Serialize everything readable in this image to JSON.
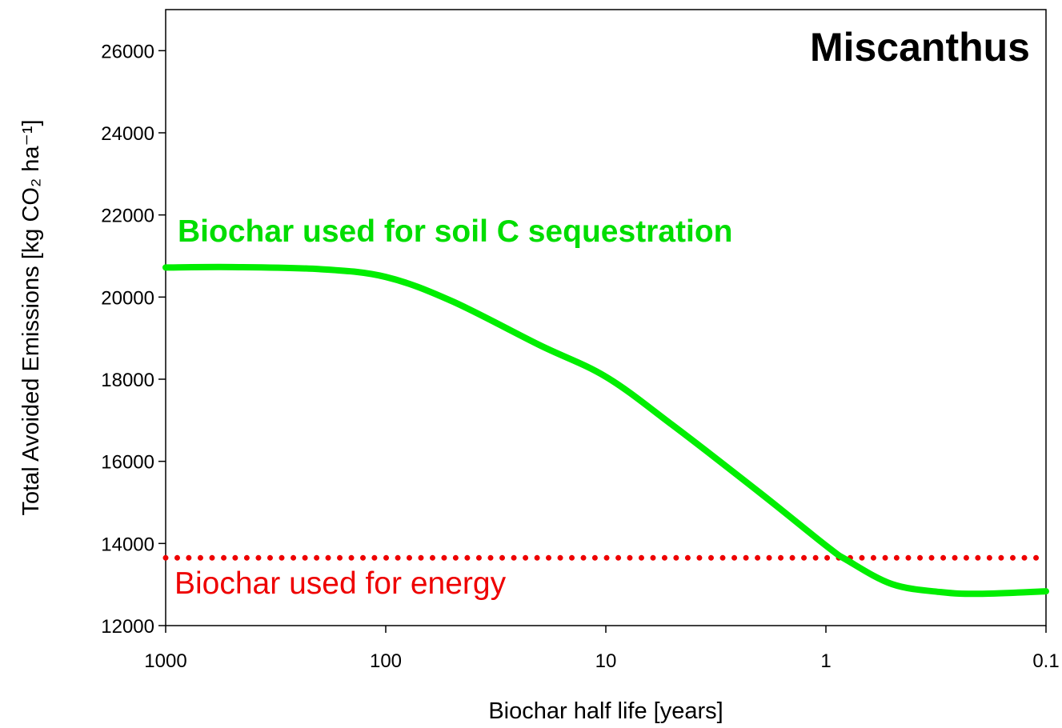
{
  "chart_data": {
    "type": "line",
    "x_label": "Biochar half life [years]",
    "y_label": "Total Avoided Emissions [kg CO₂ ha⁻¹]",
    "annotations": [
      "Miscanthus",
      "Biochar used for soil C sequestration",
      "Biochar used for energy"
    ],
    "x": [
      1000,
      500,
      200,
      100,
      50,
      20,
      10,
      5,
      2,
      1,
      0.8,
      0.5,
      0.3,
      0.2,
      0.1
    ],
    "series": [
      {
        "name": "Biochar used for soil C sequestration",
        "color": "#00ee00",
        "style": "solid",
        "values": [
          20720,
          20730,
          20680,
          20490,
          19900,
          18830,
          18060,
          16890,
          15240,
          13950,
          13590,
          13010,
          12815,
          12775,
          12835
        ]
      },
      {
        "name": "Biochar used for energy",
        "color": "#ee0000",
        "style": "dotted",
        "values": [
          13650,
          13650,
          13650,
          13650,
          13650,
          13650,
          13650,
          13650,
          13650,
          13650,
          13650,
          13650,
          13650,
          13650,
          13650
        ]
      }
    ],
    "xscale": "log",
    "xlim": [
      1000,
      0.1
    ],
    "xticks": [
      1000,
      100,
      10,
      1,
      0.1
    ],
    "ylim": [
      12000,
      27000
    ],
    "yticks": [
      12000,
      14000,
      16000,
      18000,
      20000,
      22000,
      24000,
      26000
    ],
    "grid": false
  }
}
